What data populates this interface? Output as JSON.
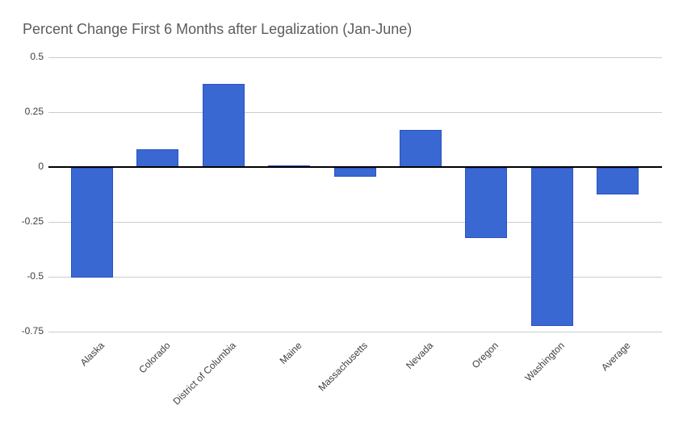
{
  "title": "Percent Change First 6 Months after Legalization (Jan-June)",
  "chart_data": {
    "type": "bar",
    "title": "Percent Change First 6 Months after Legalization (Jan-June)",
    "categories": [
      "Alaska",
      "Colorado",
      "District of Columbia",
      "Maine",
      "Massachusetts",
      "Nevada",
      "Oregon",
      "Washington",
      "Average"
    ],
    "values": [
      -0.5,
      0.08,
      0.38,
      0,
      -0.04,
      0.17,
      -0.32,
      -0.72,
      -0.12
    ],
    "xlabel": "",
    "ylabel": "",
    "ylim": [
      -0.75,
      0.5
    ],
    "yticks": [
      0.5,
      0.25,
      0,
      -0.25,
      -0.5,
      -0.75
    ],
    "ytick_labels": [
      "0.5",
      "0.25",
      "0",
      "-0.25",
      "-0.5",
      "-0.75"
    ],
    "grid": true,
    "legend": "none",
    "colors": {
      "bar_fill": "#3a68d2",
      "bar_border": "#2a52c4",
      "gridline": "#cccccc",
      "zero_line": "#000000",
      "title_text": "#5c5c5c",
      "axis_text": "#404040",
      "background": "#ffffff"
    }
  }
}
